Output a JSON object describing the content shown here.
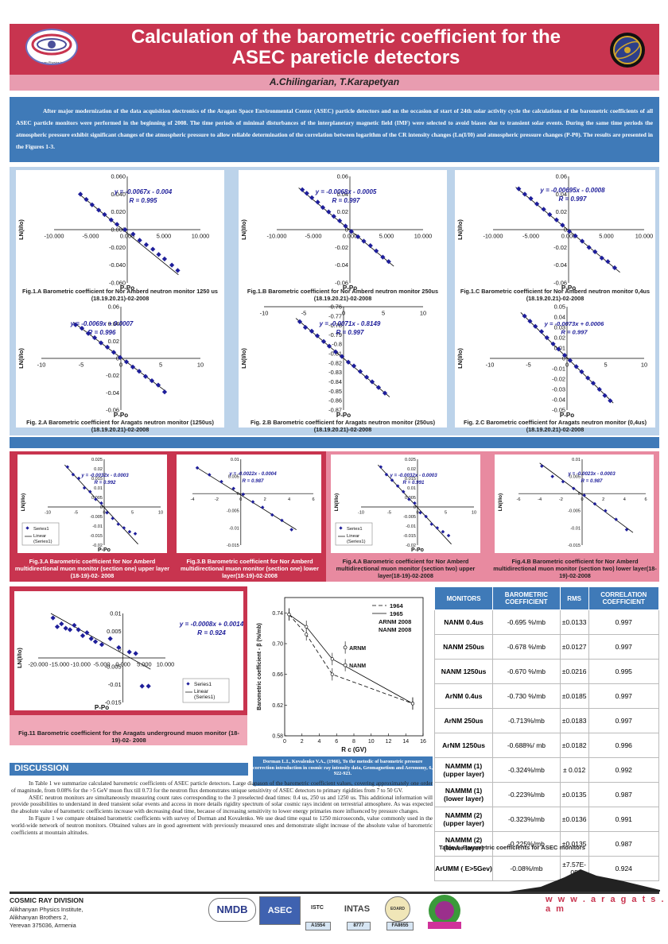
{
  "header": {
    "title_line1": "Calculation of the barometric coefficient for the",
    "title_line2": "ASEC pareticle detectors",
    "authors": "A.Chilingarian, T.Karapetyan",
    "logo_text": "Alikhanyan Physics Institute"
  },
  "intro": "After major modernization of the data acquisition electronics of the Aragats Space Environmental Center (ASEC) particle detectors and on the occasion of start of 24th solar activity cycle the calculations of the barometric coefficients of all ASEC particle monitors were performed in the beginning of 2008. The time periods of minimal disturbances of the interplanetary magnetic field (IMF) were selected to avoid biases due to transient solar events. During the same time periods the atmospheric pressure exhibit significant changes of the atmospheric pressure to allow reliable determination of the correlation between logarithm of the CR intensity changes (Ln(I/I0) and atmospheric pressure changes (P-P0). The results are presented in the Figures 1-3.",
  "colors": {
    "accent_red": "#c8344f",
    "accent_blue": "#3f7ab8",
    "light_blue": "#bcd3ea",
    "pink": "#e88aa0",
    "marker": "#1e1e9a"
  },
  "chart_data": [
    {
      "id": "fig1a",
      "type": "scatter",
      "xlabel": "P-Po",
      "ylabel": "LN(I/Io)",
      "equation": "y = -0.0067x - 0.004",
      "r_label": "R = 0.995",
      "xlim": [
        -10,
        10
      ],
      "ylim": [
        -0.06,
        0.06
      ],
      "xticks": [
        "-10.000",
        "-5.000",
        "0.000",
        "5.000",
        "10.000"
      ],
      "yticks": [
        "0.060",
        "0.040",
        "0.020",
        "0.000",
        "-0.020",
        "-0.040",
        "-0.060"
      ],
      "slope": -0.0067,
      "intercept": -0.004,
      "fit_x": [
        -6.5,
        7
      ],
      "x": [
        -6.4,
        -5.6,
        -4.8,
        -3.9,
        -3.1,
        -2.2,
        -1.4,
        -0.3,
        0.8,
        1.7,
        2.6,
        3.5,
        4.3,
        5.1,
        6.1,
        6.9
      ],
      "y": [
        0.04,
        0.034,
        0.028,
        0.022,
        0.017,
        0.011,
        0.006,
        0.0,
        -0.005,
        -0.012,
        -0.017,
        -0.022,
        -0.028,
        -0.033,
        -0.04,
        -0.046
      ],
      "caption": "Fig.1.A Barometric coefficient for Nor Amberd neutron monitor 1250 us (18.19.20.21)-02-2008"
    },
    {
      "id": "fig1b",
      "type": "scatter",
      "xlabel": "P-Po",
      "ylabel": "LN(I/Io)",
      "equation": "y = -0.0068x - 0.0005",
      "r_label": "R = 0.997",
      "xlim": [
        -10,
        10
      ],
      "ylim": [
        -0.06,
        0.06
      ],
      "xticks": [
        "-10.000",
        "-5.000",
        "0.000",
        "5.000",
        "10.000"
      ],
      "yticks": [
        "0.06",
        "0.04",
        "0.02",
        "0",
        "-0.02",
        "-0.04",
        "-0.06"
      ],
      "slope": -0.0068,
      "intercept": -0.0005,
      "fit_x": [
        -7,
        6
      ],
      "x": [
        -6.5,
        -5.9,
        -5.2,
        -4.4,
        -3.7,
        -2.9,
        -2.2,
        -1.4,
        -0.6,
        0.2,
        1.1,
        1.9,
        2.8,
        3.6,
        4.5,
        5.3
      ],
      "y": [
        0.045,
        0.041,
        0.036,
        0.031,
        0.025,
        0.02,
        0.015,
        0.01,
        0.004,
        -0.002,
        -0.008,
        -0.013,
        -0.018,
        -0.024,
        -0.031,
        -0.036
      ],
      "caption": "Fig.1.B Barometric coefficient for Nor Amberd neutron monitor 250us (18.19.20.21)-02-2008"
    },
    {
      "id": "fig1c",
      "type": "scatter",
      "xlabel": "P-Po",
      "ylabel": "LN(I/Io)",
      "equation": "y = -0.00695x - 0.0008",
      "r_label": "R = 0.997",
      "xlim": [
        -10,
        10
      ],
      "ylim": [
        -0.06,
        0.06
      ],
      "xticks": [
        "-10.000",
        "-5.000",
        "0.000",
        "5.000",
        "10.000"
      ],
      "yticks": [
        "0.06",
        "0.04",
        "0.02",
        "0",
        "-0.02",
        "-0.04",
        "-0.06"
      ],
      "slope": -0.00695,
      "intercept": -0.0008,
      "fit_x": [
        -7,
        6.8
      ],
      "x": [
        -6.6,
        -5.8,
        -5.0,
        -4.2,
        -3.3,
        -2.5,
        -1.6,
        -0.8,
        0.1,
        0.9,
        1.8,
        2.7,
        3.5,
        4.4,
        5.2,
        6.1
      ],
      "y": [
        0.046,
        0.04,
        0.035,
        0.029,
        0.023,
        0.017,
        0.011,
        0.005,
        -0.002,
        -0.007,
        -0.013,
        -0.02,
        -0.025,
        -0.032,
        -0.036,
        -0.043
      ],
      "caption": "Fig.1.C Barometric coefficient for Nor Amberd neutron monitor 0,4us (18.19.20.21)-02-2008"
    },
    {
      "id": "fig2a",
      "type": "scatter",
      "xlabel": "P-Po",
      "ylabel": "LN(I/Io)",
      "equation": "y = -0.0069x + 0.0007",
      "r_label": "R = 0.996",
      "xlim": [
        -10,
        10
      ],
      "ylim": [
        -0.06,
        0.06
      ],
      "xticks": [
        "-10",
        "-5",
        "0",
        "5",
        "10"
      ],
      "yticks": [
        "0.06",
        "0.04",
        "0.02",
        "0",
        "-0.02",
        "-0.04",
        "-0.06"
      ],
      "slope": -0.0069,
      "intercept": 0.0007,
      "fit_x": [
        -6,
        5.6
      ],
      "x": [
        -5.7,
        -4.9,
        -4.1,
        -3.3,
        -2.5,
        -1.7,
        -0.9,
        -0.1,
        0.7,
        1.5,
        2.3,
        3.1,
        3.9,
        4.7,
        5.5
      ],
      "y": [
        0.039,
        0.035,
        0.029,
        0.024,
        0.018,
        0.013,
        0.007,
        0.001,
        -0.004,
        -0.01,
        -0.015,
        -0.021,
        -0.026,
        -0.031,
        -0.039
      ],
      "caption": "Fig. 2.A Barometric coefficient for Aragats neutron monitor (1250us) (18.19.20.21)-02-2008"
    },
    {
      "id": "fig2b",
      "type": "scatter",
      "xlabel": "P-Po",
      "ylabel": "LN(I/Io)",
      "equation": "y = -0.0071x - 0.8149",
      "r_label": "R = 0.997",
      "xlim": [
        -10,
        10
      ],
      "ylim": [
        -0.87,
        -0.76
      ],
      "xticks": [
        "-10",
        "-5",
        "0",
        "5",
        "10"
      ],
      "yticks": [
        "-0.76",
        "-0.77",
        "-0.78",
        "-0.79",
        "-0.8",
        "-0.81",
        "-0.82",
        "-0.83",
        "-0.84",
        "-0.85",
        "-0.86",
        "-0.87"
      ],
      "slope": -0.0071,
      "intercept": -0.8149,
      "fit_x": [
        -6,
        5.8
      ],
      "x": [
        -5.5,
        -4.8,
        -4.0,
        -3.3,
        -2.5,
        -1.8,
        -1.0,
        -0.2,
        0.6,
        1.3,
        2.1,
        2.9,
        3.6,
        4.4,
        5.2
      ],
      "y": [
        -0.776,
        -0.782,
        -0.786,
        -0.791,
        -0.797,
        -0.802,
        -0.808,
        -0.813,
        -0.819,
        -0.823,
        -0.829,
        -0.835,
        -0.84,
        -0.846,
        -0.852
      ],
      "caption": "Fig. 2.B Barometric coefficient for Aragats neutron monitor (250us) (18.19.20.21)-02-2008"
    },
    {
      "id": "fig2c",
      "type": "scatter",
      "xlabel": "P-Po",
      "ylabel": "LN(I/Io)",
      "equation": "y = -0.0073x + 0.0006",
      "r_label": "R = 0.997",
      "xlim": [
        -10,
        10
      ],
      "ylim": [
        -0.05,
        0.05
      ],
      "xticks": [
        "-10",
        "-5",
        "0",
        "5",
        "10"
      ],
      "yticks": [
        "0.05",
        "0.04",
        "0.03",
        "0.02",
        "0.01",
        "0",
        "-0.01",
        "-0.02",
        "-0.03",
        "-0.04",
        "-0.05"
      ],
      "slope": -0.0073,
      "intercept": 0.0006,
      "fit_x": [
        -6,
        6
      ],
      "x": [
        -5.5,
        -4.8,
        -4.1,
        -3.3,
        -2.6,
        -1.8,
        -1.1,
        -0.3,
        0.4,
        1.2,
        1.9,
        2.7,
        3.4,
        4.2,
        4.9,
        5.6
      ],
      "y": [
        0.041,
        0.036,
        0.031,
        0.026,
        0.02,
        0.014,
        0.009,
        0.003,
        -0.002,
        -0.008,
        -0.013,
        -0.019,
        -0.024,
        -0.03,
        -0.036,
        -0.041
      ],
      "caption": "Fig. 2.C Barometric coefficient for Aragats neutron monitor (0,4us) (18.19.20.21)-02-2008"
    },
    {
      "id": "fig3a",
      "type": "scatter",
      "xlabel": "P-Po",
      "ylabel": "LN(I/Io)",
      "equation": "y = -0.0032x - 0.0003",
      "r_label": "R = 0.992",
      "legend": [
        "Series1",
        "Linear (Series1)"
      ],
      "xlim": [
        -10,
        10
      ],
      "ylim": [
        -0.02,
        0.025
      ],
      "xticks": [
        "-10",
        "-5",
        "0",
        "5",
        "10"
      ],
      "yticks": [
        "0.025",
        "0.02",
        "0.015",
        "0.01",
        "0.005",
        "0",
        "-0.005",
        "-0.01",
        "-0.015",
        "-0.02"
      ],
      "slope": -0.0032,
      "intercept": -0.0003,
      "fit_x": [
        -7,
        6
      ],
      "x": [
        -6.5,
        -5.5,
        -4.5,
        -3.5,
        -2.5,
        -1.5,
        -0.5,
        0.5,
        1.5,
        2.5,
        3.5,
        4.5,
        5.5
      ],
      "y": [
        0.021,
        0.017,
        0.015,
        0.01,
        0.008,
        0.004,
        0.002,
        -0.003,
        -0.006,
        -0.009,
        -0.011,
        -0.013,
        -0.014
      ],
      "caption": "Fig.3.A Barometric coefficient for Nor Amberd multidirectional muon monitor (section one) upper layer (18-19)-02- 2008"
    },
    {
      "id": "fig3b",
      "type": "scatter",
      "xlabel": "",
      "ylabel": "",
      "equation": "y = -0.0022x - 0.0004",
      "r_label": "R = 0.987",
      "xlim": [
        -4,
        6
      ],
      "ylim": [
        -0.015,
        0.01
      ],
      "xticks": [
        "-4",
        "-2",
        "0",
        "2",
        "4",
        "6"
      ],
      "yticks": [
        "0.01",
        "0.005",
        "0",
        "-0.005",
        "-0.01",
        "-0.015"
      ],
      "slope": -0.0022,
      "intercept": -0.0004,
      "fit_x": [
        -3.6,
        4.6
      ],
      "x": [
        -3.6,
        -2.6,
        -1.6,
        -0.6,
        0.2,
        1.0,
        1.8,
        2.6,
        3.4,
        4.2
      ],
      "y": [
        0.0075,
        0.0055,
        0.0035,
        0.0015,
        -0.0002,
        -0.0024,
        -0.004,
        -0.0062,
        -0.0078,
        -0.0105
      ],
      "caption": "Fig.3.B Barometric coefficient for Nor Amberd multidirectional muon monitor (section one) lower layer(18-19)-02-2008"
    },
    {
      "id": "fig4a",
      "type": "scatter",
      "xlabel": "P-Po",
      "ylabel": "LN(I/Io)",
      "equation": "y = -0.0032x - 0.0003",
      "r_label": "R = 0.991",
      "legend": [
        "Series1",
        "Linear (Series1)"
      ],
      "xlim": [
        -10,
        10
      ],
      "ylim": [
        -0.02,
        0.025
      ],
      "xticks": [
        "-10",
        "-5",
        "0",
        "5",
        "10"
      ],
      "yticks": [
        "0.025",
        "0.02",
        "0.015",
        "0.01",
        "0.005",
        "0",
        "-0.005",
        "-0.01",
        "-0.015",
        "-0.02"
      ],
      "slope": -0.0032,
      "intercept": -0.0003,
      "fit_x": [
        -7,
        6
      ],
      "x": [
        -6.5,
        -5.5,
        -4.5,
        -3.5,
        -2.5,
        -1.5,
        -0.5,
        0.5,
        1.5,
        2.5,
        3.5,
        4.5,
        5.5
      ],
      "y": [
        0.021,
        0.017,
        0.014,
        0.011,
        0.008,
        0.004,
        0.002,
        -0.003,
        -0.005,
        -0.009,
        -0.011,
        -0.013,
        -0.015
      ],
      "caption": "Fig.4.A Barometric coefficient for Nor Amberd multidirectional muon monitor (section two) upper layer(18-19)-02-2008"
    },
    {
      "id": "fig4b",
      "type": "scatter",
      "xlabel": "",
      "ylabel": "LN(I/Io)",
      "equation": "y = -0.0023x - 0.0003",
      "r_label": "R = 0.987",
      "xlim": [
        -6,
        6
      ],
      "ylim": [
        -0.015,
        0.01
      ],
      "xticks": [
        "-6",
        "-4",
        "-2",
        "0",
        "2",
        "4",
        "6"
      ],
      "yticks": [
        "0.01",
        "0.005",
        "0",
        "-0.005",
        "-0.01",
        "-0.015"
      ],
      "slope": -0.0023,
      "intercept": -0.0003,
      "fit_x": [
        -4,
        4.8
      ],
      "x": [
        -3.8,
        -2.8,
        -1.8,
        -0.8,
        0.2,
        1.2,
        2.2,
        3.2,
        4.2
      ],
      "y": [
        0.008,
        0.005,
        0.0035,
        0.0015,
        -0.0005,
        -0.003,
        -0.005,
        -0.0075,
        -0.0105
      ],
      "caption": "Fig.4.B Barometric coefficient for Nor Amberd multidirectional muon monitor (section two) lower layer(18-19)-02-2008"
    },
    {
      "id": "fig11",
      "type": "scatter",
      "xlabel": "P-Po",
      "ylabel": "LN(I/Io)",
      "equation": "y = -0.0008x + 0.0014",
      "r_label": "R = 0.924",
      "legend": [
        "Series1",
        "Linear (Series1)"
      ],
      "xlim": [
        -20,
        10
      ],
      "ylim": [
        -0.015,
        0.015
      ],
      "xticks": [
        "-20.000",
        "-15.000",
        "-10.000",
        "-5.000",
        "0.000",
        "5.000",
        "10.000"
      ],
      "yticks": [
        "0.01",
        "0.005",
        "0",
        "-0.005",
        "-0.01",
        "-0.015"
      ],
      "slope": -0.0008,
      "intercept": 0.0014,
      "fit_x": [
        -17,
        6.5
      ],
      "x": [
        -16.5,
        -15.5,
        -14.5,
        -13.5,
        -12.5,
        -11.5,
        -10.5,
        -9.5,
        -8.5,
        -7.5,
        -6.5,
        -5.0,
        -3.0,
        -1.0,
        1.5,
        3.0,
        4.5,
        6.0
      ],
      "y": [
        0.0135,
        0.0105,
        0.0115,
        0.01,
        0.0095,
        0.011,
        0.0095,
        0.0075,
        0.0085,
        0.0065,
        0.0055,
        0.0045,
        0.0065,
        0.0035,
        0.002,
        0.0015,
        -0.0095,
        -0.0095
      ],
      "caption": "Fig.11 Barometric coefficient for the Aragats underground muon monitor (18-19)-02- 2008"
    },
    {
      "id": "dorman",
      "type": "line",
      "xlabel": "R c (GV)",
      "ylabel": "Barometric coefficient - β (%/mb)",
      "xlim": [
        0,
        16
      ],
      "ylim": [
        0.58,
        0.76
      ],
      "xticks": [
        "0",
        "2",
        "4",
        "6",
        "8",
        "10",
        "12",
        "14",
        "16"
      ],
      "yticks": [
        "0.74",
        "0.70",
        "0.66",
        "0.62",
        "0.58"
      ],
      "series": [
        {
          "name": "1964",
          "style": "dashed",
          "x": [
            0.5,
            2.5,
            5.5,
            14.8
          ],
          "y": [
            0.738,
            0.712,
            0.66,
            0.622
          ]
        },
        {
          "name": "1965",
          "style": "solid",
          "x": [
            0.5,
            2.5,
            5.5,
            14.8
          ],
          "y": [
            0.738,
            0.722,
            0.68,
            0.622
          ]
        }
      ],
      "points": [
        {
          "label": "ARNM",
          "x": 7,
          "y": 0.695
        },
        {
          "label": "NANM",
          "x": 7,
          "y": 0.672
        }
      ],
      "legend": [
        "1964",
        "1965",
        "ARNM 2008",
        "NANM 2008"
      ]
    }
  ],
  "dorman_ref": "Dorman L.I., Kovalenko V.A., (1966), To the metodic of barometric pressure correction introduction in cosmic ray intensity data, Geomagnetism and Aeronomy, 6, 922-923.",
  "table": {
    "headers": [
      "MONITORS",
      "BAROMETRIC COEFFICIENT",
      "RMS",
      "CORRELATION COEFFICIENT"
    ],
    "rows": [
      [
        "NANM 0.4us",
        "-0.695 %/mb",
        "±0.0133",
        "0.997"
      ],
      [
        "NANM 250us",
        "-0.678 %/mb",
        "±0.0127",
        "0.997"
      ],
      [
        "NANM 1250us",
        "-0.670 %/mb",
        "±0.0216",
        "0.995"
      ],
      [
        "ArNM 0.4us",
        "-0.730 %/mb",
        "±0.0185",
        "0.997"
      ],
      [
        "ArNM 250us",
        "-0.713%/mb",
        "±0.0183",
        "0.997"
      ],
      [
        "ArNM 1250us",
        "-0.688%/ mb",
        "±0.0182",
        "0.996"
      ],
      [
        "NAMMM (1) (upper layer)",
        "-0.324%/mb",
        "± 0.012",
        "0.992"
      ],
      [
        "NAMMM (1) (lower layer)",
        "-0.223%/mb",
        "±0.0135",
        "0.987"
      ],
      [
        "NAMMM (2) (upper layer)",
        "-0.323%/mb",
        "±0.0136",
        "0.991"
      ],
      [
        "NAMMM (2) (lower layer)",
        "-0.225%/mb",
        "±0.0135",
        "0.987"
      ],
      [
        "ArUMM ( E>5Gev)",
        "-0.08%/mb",
        "±7.57E-05",
        "0.924"
      ]
    ],
    "caption": "Table 1. Barometric coefficients for ASEC monitors"
  },
  "discussion": {
    "heading": "DISCUSSION",
    "p1": "In Table 1 we summarize calculated barometric coefficients of ASEC particle detectors. Large diapason of the barometric coefficient values, covering approximately one order of magnitude, from 0.08% for the >5 GeV muon flux till 0.73 for the neutron flux demonstrates unique sensitivity of ASEC detectors to primary rigidities from 7 to 50 GV.",
    "p2": "ASEC neutron monitors are simultaneously measuring count rates corresponding to the 3 preselected dead times: 0.4 us, 250 us and 1250 us. This additional information will provide possibilities to understand in deed transient solar events and access in more details rigidity spectrum of solar cosmic rays incident on terrestrial atmosphere. As was expected the absolute value of barometric coefficients increase with decreasing dead time, because of increasing sensitivity to lower energy primaries more influenced by pressure changes.",
    "p3": "In Figure 1 we compare obtained barometric coefficients with survey of Dorman and Kovalenko. We use dead time equal to 1250 microseconds, value commonly used in the world-wide network of neutron monitors. Obtained values are in good agreement with previously measured ones and demonstrate slight increase of the absolute value of barometric coefficients at mountain altitudes."
  },
  "footer": {
    "division": "COSMIC RAY DIVISION",
    "addr1": "Alikhanyan Physics Institute,",
    "addr2": "Alikhanyan Brothers 2,",
    "addr3": "Yerevan 375036, Armenia",
    "website": "w w w . a r a g a t s . a m",
    "logos": [
      "NMDB",
      "ASEC",
      "ISTC",
      "INTAS",
      "EOARD"
    ],
    "grant_a": "A1554",
    "grant_b": "8777",
    "grant_c": "FA8655"
  }
}
